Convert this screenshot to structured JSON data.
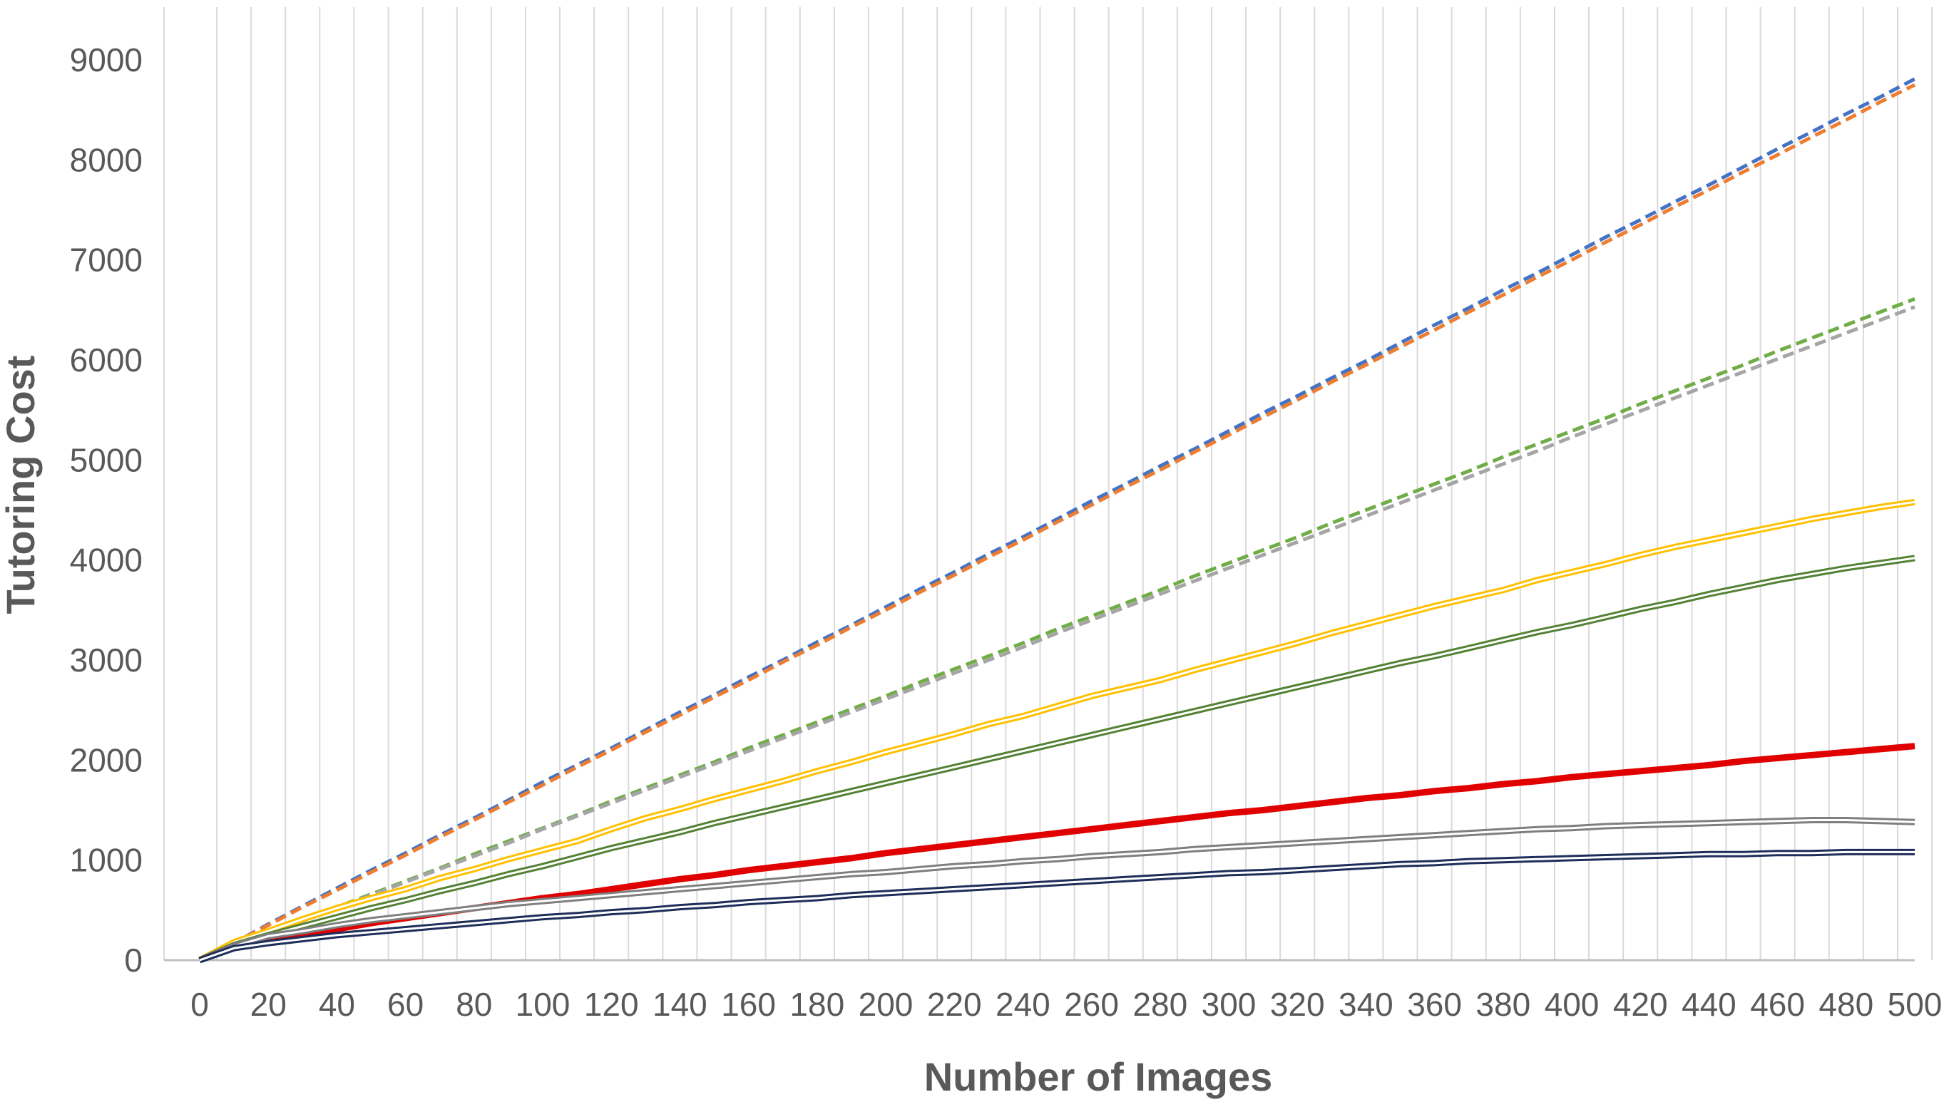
{
  "chart_data": {
    "type": "line",
    "title": "",
    "xlabel": "Number of Images",
    "ylabel": "Tutoring Cost",
    "xlim": [
      0,
      500
    ],
    "ylim": [
      0,
      9000
    ],
    "x_ticks": [
      "0",
      "20",
      "40",
      "60",
      "80",
      "100",
      "120",
      "140",
      "160",
      "180",
      "200",
      "220",
      "240",
      "260",
      "280",
      "300",
      "320",
      "340",
      "360",
      "380",
      "400",
      "420",
      "440",
      "460",
      "480",
      "500"
    ],
    "y_ticks": [
      "0",
      "1000",
      "2000",
      "3000",
      "4000",
      "5000",
      "6000",
      "7000",
      "8000",
      "9000"
    ],
    "grid": "vertical lines every 10, horizontal gridlines hidden",
    "legend": "none",
    "x": [
      0,
      10,
      20,
      30,
      40,
      50,
      60,
      70,
      80,
      90,
      100,
      110,
      120,
      130,
      140,
      150,
      160,
      170,
      180,
      190,
      200,
      210,
      220,
      230,
      240,
      250,
      260,
      270,
      280,
      290,
      300,
      310,
      320,
      330,
      340,
      350,
      360,
      370,
      380,
      390,
      400,
      410,
      420,
      430,
      440,
      450,
      460,
      470,
      480,
      490,
      500
    ],
    "series": [
      {
        "color": "#4472c4",
        "dashed": true,
        "double": false,
        "width": 5,
        "values": [
          0,
          170,
          360,
          540,
          720,
          900,
          1070,
          1250,
          1420,
          1600,
          1780,
          1950,
          2120,
          2300,
          2480,
          2650,
          2830,
          3000,
          3180,
          3350,
          3530,
          3710,
          3880,
          4060,
          4230,
          4410,
          4590,
          4760,
          4940,
          5110,
          5290,
          5470,
          5640,
          5820,
          5990,
          6170,
          6350,
          6520,
          6700,
          6870,
          7050,
          7230,
          7400,
          7580,
          7750,
          7930,
          8110,
          8280,
          8460,
          8630,
          8810
        ]
      },
      {
        "color": "#ed7d31",
        "dashed": true,
        "double": false,
        "width": 5,
        "values": [
          0,
          170,
          350,
          530,
          700,
          880,
          1050,
          1230,
          1400,
          1580,
          1750,
          1930,
          2100,
          2280,
          2450,
          2630,
          2800,
          2980,
          3150,
          3330,
          3500,
          3680,
          3850,
          4030,
          4200,
          4380,
          4550,
          4730,
          4900,
          5080,
          5250,
          5430,
          5600,
          5780,
          5950,
          6130,
          6300,
          6480,
          6650,
          6830,
          7000,
          7180,
          7350,
          7530,
          7700,
          7880,
          8050,
          8230,
          8400,
          8580,
          8750
        ]
      },
      {
        "color": "#70ad47",
        "dashed": true,
        "double": false,
        "width": 5,
        "values": [
          0,
          130,
          260,
          400,
          530,
          660,
          790,
          920,
          1060,
          1190,
          1320,
          1450,
          1590,
          1720,
          1850,
          1980,
          2120,
          2250,
          2380,
          2510,
          2640,
          2780,
          2910,
          3040,
          3170,
          3310,
          3440,
          3570,
          3700,
          3840,
          3970,
          4100,
          4230,
          4370,
          4500,
          4630,
          4760,
          4890,
          5030,
          5160,
          5290,
          5420,
          5560,
          5690,
          5820,
          5950,
          6090,
          6220,
          6350,
          6480,
          6610
        ]
      },
      {
        "color": "#a5a5a5",
        "dashed": true,
        "double": false,
        "width": 5,
        "values": [
          0,
          130,
          260,
          390,
          520,
          650,
          780,
          910,
          1040,
          1170,
          1310,
          1440,
          1570,
          1700,
          1830,
          1960,
          2090,
          2220,
          2350,
          2480,
          2610,
          2740,
          2870,
          3000,
          3130,
          3270,
          3400,
          3530,
          3660,
          3790,
          3920,
          4050,
          4180,
          4310,
          4440,
          4570,
          4700,
          4830,
          4960,
          5090,
          5230,
          5360,
          5490,
          5620,
          5750,
          5880,
          6010,
          6140,
          6270,
          6400,
          6530
        ]
      },
      {
        "color": "#ffc000",
        "dashed": false,
        "double": true,
        "width": 3,
        "values": [
          0,
          180,
          290,
          410,
          520,
          620,
          710,
          820,
          910,
          1010,
          1100,
          1190,
          1310,
          1420,
          1510,
          1610,
          1700,
          1790,
          1890,
          1980,
          2080,
          2170,
          2260,
          2360,
          2440,
          2540,
          2640,
          2720,
          2800,
          2900,
          2990,
          3080,
          3170,
          3270,
          3360,
          3450,
          3540,
          3620,
          3700,
          3800,
          3880,
          3960,
          4050,
          4130,
          4200,
          4270,
          4340,
          4410,
          4470,
          4530,
          4580
        ]
      },
      {
        "color": "#548235",
        "dashed": false,
        "double": true,
        "width": 3,
        "values": [
          0,
          150,
          250,
          340,
          430,
          520,
          600,
          690,
          770,
          860,
          940,
          1030,
          1120,
          1200,
          1280,
          1370,
          1450,
          1530,
          1610,
          1690,
          1770,
          1850,
          1930,
          2010,
          2090,
          2170,
          2250,
          2330,
          2410,
          2490,
          2570,
          2650,
          2730,
          2810,
          2890,
          2970,
          3040,
          3120,
          3200,
          3280,
          3350,
          3430,
          3510,
          3580,
          3660,
          3730,
          3800,
          3860,
          3920,
          3970,
          4020
        ]
      },
      {
        "color": "#e00000",
        "dashed": false,
        "double": false,
        "width": 9,
        "values": [
          0,
          140,
          200,
          260,
          310,
          370,
          420,
          470,
          520,
          570,
          620,
          660,
          710,
          760,
          810,
          850,
          900,
          940,
          980,
          1020,
          1070,
          1110,
          1150,
          1190,
          1230,
          1270,
          1310,
          1350,
          1390,
          1430,
          1470,
          1500,
          1540,
          1580,
          1620,
          1650,
          1690,
          1720,
          1760,
          1790,
          1830,
          1860,
          1890,
          1920,
          1950,
          1990,
          2020,
          2050,
          2080,
          2110,
          2140
        ]
      },
      {
        "color": "#7f7f7f",
        "dashed": false,
        "double": true,
        "width": 3,
        "values": [
          0,
          140,
          240,
          290,
          350,
          400,
          440,
          480,
          520,
          560,
          590,
          620,
          650,
          680,
          710,
          740,
          770,
          800,
          830,
          860,
          880,
          910,
          940,
          960,
          990,
          1010,
          1040,
          1060,
          1080,
          1110,
          1130,
          1150,
          1170,
          1190,
          1210,
          1230,
          1250,
          1270,
          1290,
          1310,
          1320,
          1340,
          1350,
          1360,
          1370,
          1380,
          1390,
          1400,
          1400,
          1390,
          1380
        ]
      },
      {
        "color": "#1f2d5a",
        "dashed": false,
        "double": true,
        "width": 3,
        "values": [
          0,
          120,
          170,
          210,
          250,
          280,
          310,
          340,
          370,
          400,
          430,
          450,
          480,
          500,
          530,
          550,
          580,
          600,
          620,
          650,
          670,
          690,
          710,
          730,
          750,
          770,
          790,
          810,
          830,
          850,
          870,
          880,
          900,
          920,
          940,
          960,
          970,
          990,
          1000,
          1010,
          1020,
          1030,
          1040,
          1050,
          1060,
          1060,
          1070,
          1070,
          1080,
          1080,
          1080
        ]
      }
    ]
  }
}
